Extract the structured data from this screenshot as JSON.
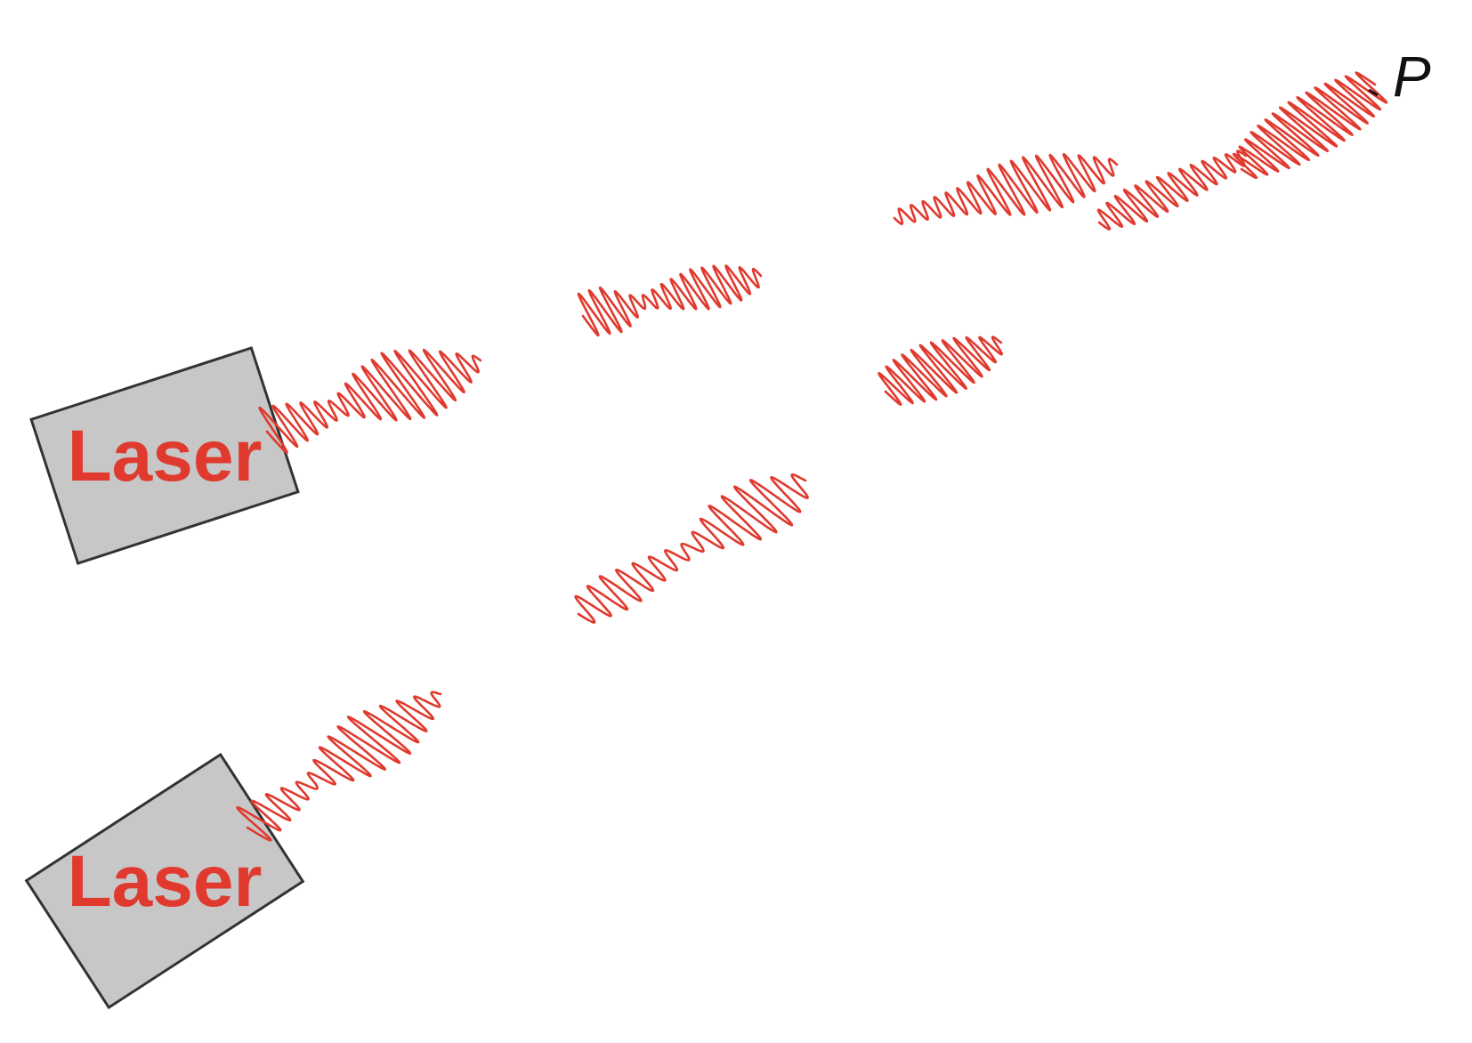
{
  "diagram": {
    "lasers": [
      {
        "label": "Laser"
      },
      {
        "label": "Laser"
      }
    ],
    "point_label": "P",
    "colors": {
      "wave": "#e03a2f",
      "laser_body": "#c6c7c6",
      "laser_outline": "#333333",
      "label": "#e03a2f",
      "point": "#111111"
    }
  }
}
